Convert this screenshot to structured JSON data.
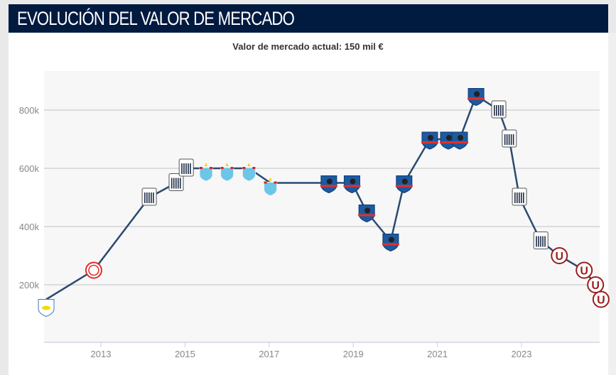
{
  "header": {
    "title": "EVOLUCIÓN DEL VALOR DE MERCADO"
  },
  "current_value": "Valor de mercado actual: 150 mil €",
  "colors": {
    "header_bg": "#001a40",
    "line": "#2b4a6f",
    "grid": "#cccccc",
    "plot_bg": "#f7f7f8"
  },
  "chart_data": {
    "type": "line",
    "title": "",
    "xlabel": "",
    "ylabel": "",
    "ylim": [
      0,
      930
    ],
    "xlim": [
      2011.65,
      2024.95
    ],
    "grid": true,
    "y_ticks": [
      {
        "v": 200,
        "label": "200k"
      },
      {
        "v": 400,
        "label": "400k"
      },
      {
        "v": 600,
        "label": "600k"
      },
      {
        "v": 800,
        "label": "800k"
      }
    ],
    "x_ticks": [
      {
        "v": 2013,
        "label": "2013"
      },
      {
        "v": 2015,
        "label": "2015"
      },
      {
        "v": 2017,
        "label": "2017"
      },
      {
        "v": 2019,
        "label": "2019"
      },
      {
        "v": 2021,
        "label": "2021"
      },
      {
        "v": 2023,
        "label": "2023"
      }
    ],
    "unit": "k €",
    "points": [
      {
        "x": 2011.7,
        "y": 150,
        "crest": "blue-shield-crest"
      },
      {
        "x": 2012.83,
        "y": 250,
        "crest": "red-circle-crest"
      },
      {
        "x": 2014.15,
        "y": 500,
        "crest": "striped-shield-crest"
      },
      {
        "x": 2014.79,
        "y": 550,
        "crest": "striped-shield-crest"
      },
      {
        "x": 2015.03,
        "y": 600,
        "crest": "striped-shield-crest"
      },
      {
        "x": 2015.5,
        "y": 600,
        "crest": "sky-blue-star-crest"
      },
      {
        "x": 2016.0,
        "y": 600,
        "crest": "sky-blue-star-crest"
      },
      {
        "x": 2016.52,
        "y": 600,
        "crest": "sky-blue-star-crest"
      },
      {
        "x": 2017.03,
        "y": 550,
        "crest": "sky-blue-star-crest"
      },
      {
        "x": 2018.42,
        "y": 550,
        "crest": "blue-chief-crest"
      },
      {
        "x": 2018.97,
        "y": 550,
        "crest": "blue-chief-crest"
      },
      {
        "x": 2019.32,
        "y": 450,
        "crest": "blue-chief-crest"
      },
      {
        "x": 2019.89,
        "y": 350,
        "crest": "blue-chief-crest"
      },
      {
        "x": 2020.21,
        "y": 550,
        "crest": "blue-chief-crest"
      },
      {
        "x": 2020.82,
        "y": 700,
        "crest": "blue-chief-crest"
      },
      {
        "x": 2021.26,
        "y": 700,
        "crest": "blue-chief-crest"
      },
      {
        "x": 2021.53,
        "y": 700,
        "crest": "blue-chief-crest"
      },
      {
        "x": 2021.92,
        "y": 850,
        "crest": "blue-chief-crest"
      },
      {
        "x": 2022.46,
        "y": 800,
        "crest": "striped-shield-crest"
      },
      {
        "x": 2022.71,
        "y": 700,
        "crest": "striped-shield-crest"
      },
      {
        "x": 2022.95,
        "y": 500,
        "crest": "striped-shield-crest"
      },
      {
        "x": 2023.46,
        "y": 350,
        "crest": "striped-shield-crest"
      },
      {
        "x": 2023.9,
        "y": 300,
        "crest": "red-u-circle-crest"
      },
      {
        "x": 2024.49,
        "y": 250,
        "crest": "red-u-circle-crest"
      },
      {
        "x": 2024.76,
        "y": 200,
        "crest": "red-u-circle-crest"
      },
      {
        "x": 2024.89,
        "y": 150,
        "crest": "red-u-circle-crest"
      }
    ]
  }
}
